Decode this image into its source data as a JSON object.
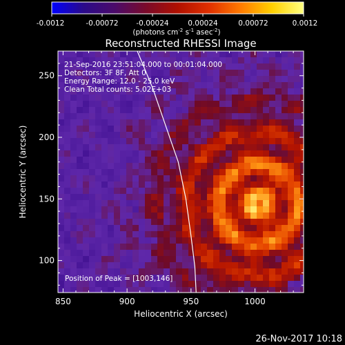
{
  "colorbar": {
    "ticks": [
      "-0.0012",
      "-0.00072",
      "-0.00024",
      "0.00024",
      "0.00072",
      "0.0012"
    ],
    "units_prefix": "(photons cm",
    "units_sup1": "-2",
    "units_mid": " s",
    "units_sup2": "-1",
    "units_mid2": " asec",
    "units_sup3": "-2",
    "units_suffix": ")",
    "stops": [
      "#0000ff",
      "#2a0a8a",
      "#4b0a6a",
      "#7a0a2a",
      "#b01000",
      "#e03000",
      "#ff7a00",
      "#ffd000",
      "#ffff80"
    ]
  },
  "footer": {
    "date": "26-Nov-2017 10:18"
  },
  "chart_data": {
    "type": "heatmap",
    "title": "Reconstructed RHESSI Image",
    "xlabel": "Heliocentric X (arcsec)",
    "ylabel": "Heliocentric Y (arcsec)",
    "xlim": [
      846,
      1038
    ],
    "ylim": [
      74,
      270
    ],
    "x_ticks": [
      "850",
      "900",
      "950",
      "1000"
    ],
    "y_ticks": [
      "100",
      "150",
      "200",
      "250"
    ],
    "x_tick_values": [
      850,
      900,
      950,
      1000
    ],
    "y_tick_values": [
      100,
      150,
      200,
      250
    ],
    "annotations": [
      "21-Sep-2016 23:51:04.000 to 00:01:04.000",
      "Detectors: 3F 8F, Att 0",
      "Energy Range: 12.0 - 25.0 keV",
      "Clean     Total counts: 5.02E+03"
    ],
    "peak_label": "Position of Peak = [1003,146]",
    "peak": [
      1003,
      146
    ],
    "limb_curve": [
      [
        908,
        270
      ],
      [
        920,
        240
      ],
      [
        930,
        210
      ],
      [
        940,
        180
      ],
      [
        946,
        150
      ],
      [
        950,
        120
      ],
      [
        953,
        95
      ],
      [
        954,
        74
      ]
    ]
  }
}
